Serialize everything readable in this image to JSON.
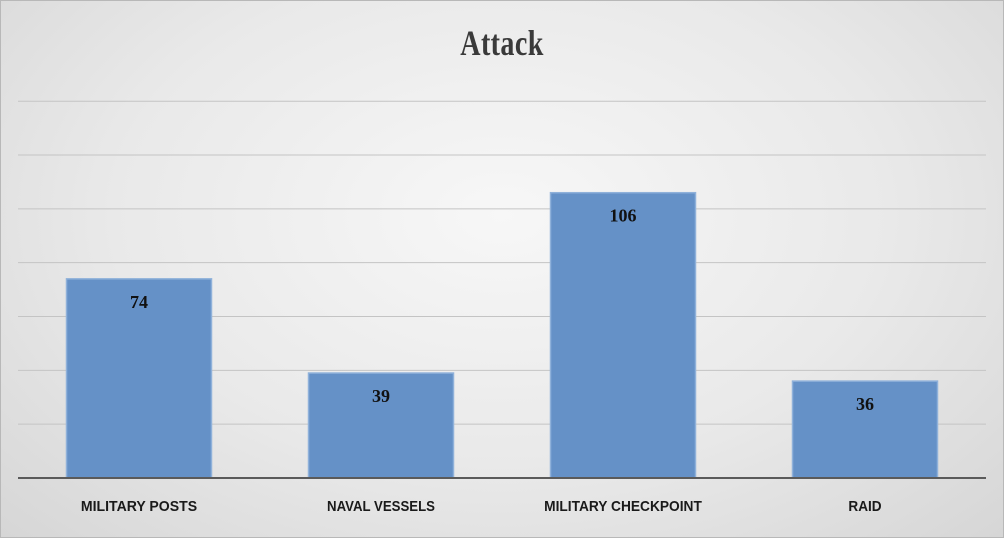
{
  "chart_data": {
    "type": "bar",
    "title": "Attack",
    "categories": [
      "MILITARY POSTS",
      "NAVAL VESSELS",
      "MILITARY CHECKPOINT",
      "RAID"
    ],
    "values": [
      74,
      39,
      106,
      36
    ],
    "xlabel": "",
    "ylabel": "",
    "ylim": [
      0,
      140
    ],
    "grid": true,
    "gridline_interval": 20,
    "data_labels": true,
    "data_label_position": "inside-top",
    "legend": "none",
    "bar_color": "#6591c7",
    "bar_edge_color": "#8fb1da"
  }
}
